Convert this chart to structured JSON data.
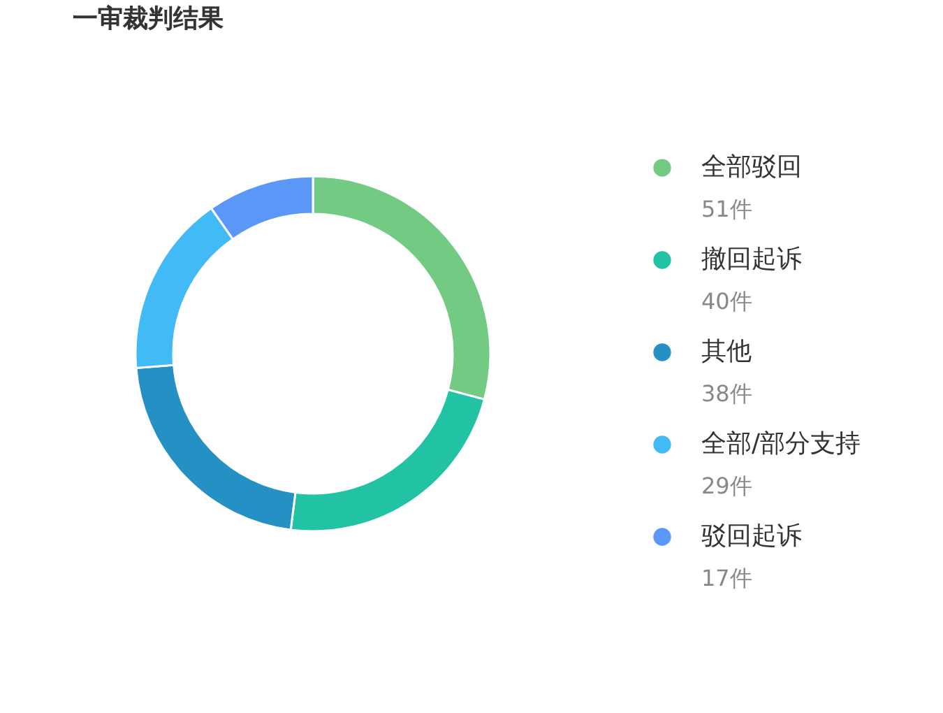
{
  "chart_data": {
    "type": "donut",
    "title": "一审裁判结果",
    "categories": [
      "全部驳回",
      "撤回起诉",
      "其他",
      "全部/部分支持",
      "驳回起诉"
    ],
    "values": [
      51,
      40,
      38,
      29,
      17
    ],
    "value_labels": [
      "51件",
      "40件",
      "38件",
      "29件",
      "17件"
    ],
    "colors": [
      "#73ca83",
      "#22c3a5",
      "#2490c4",
      "#42baf5",
      "#5b97f7"
    ],
    "legend": "right"
  }
}
